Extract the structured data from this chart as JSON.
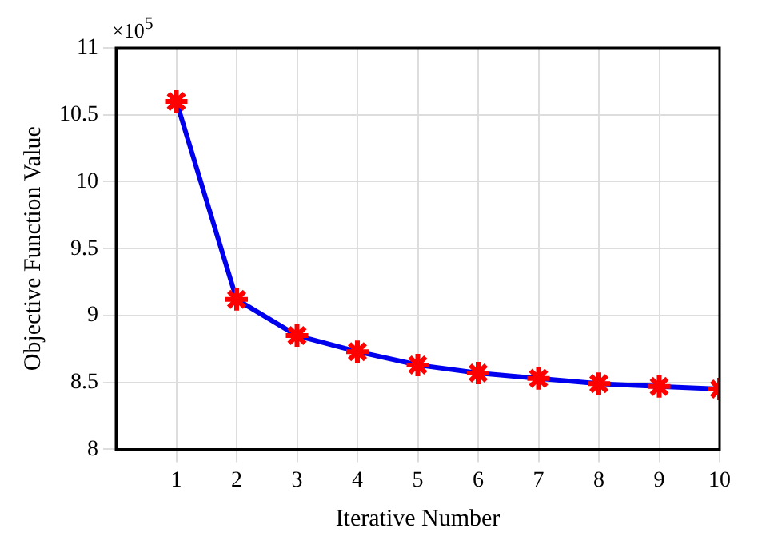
{
  "chart_data": {
    "type": "line",
    "xlabel": "Iterative Number",
    "ylabel": "Objective Function Value",
    "annotations": [
      "×10$^{5}$"
    ],
    "x": [
      1,
      2,
      3,
      4,
      5,
      6,
      7,
      8,
      9,
      10
    ],
    "series": [
      {
        "color": "#0000ee",
        "values": [
          10.6,
          9.12,
          8.85,
          8.73,
          8.63,
          8.57,
          8.53,
          8.49,
          8.47,
          8.45
        ]
      }
    ],
    "xlim": [
      0,
      10
    ],
    "xticks": [
      1,
      2,
      3,
      4,
      5,
      6,
      7,
      8,
      9,
      10
    ],
    "ylim": [
      8,
      11
    ],
    "yticks": [
      8,
      8.5,
      9,
      9.5,
      10,
      10.5,
      11
    ],
    "grid": true,
    "marker": "cross",
    "line_style": "solid"
  }
}
